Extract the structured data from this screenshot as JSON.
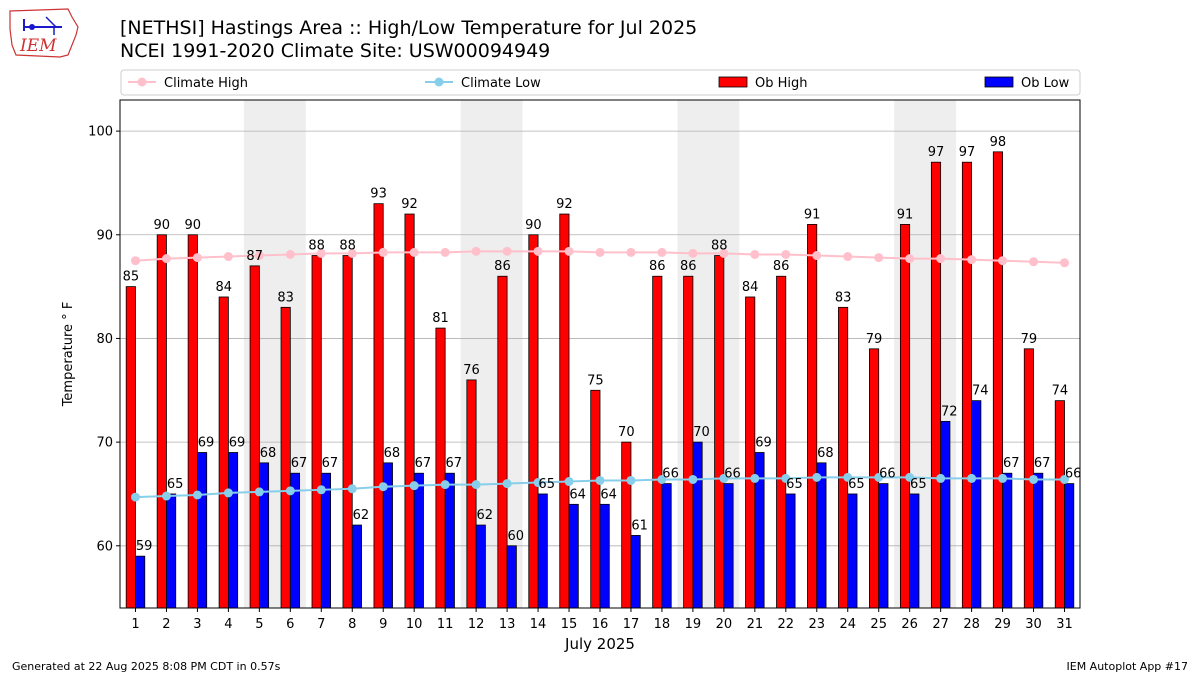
{
  "title": "[NETHSI] Hastings Area :: High/Low Temperature for Jul 2025",
  "subtitle": "NCEI 1991-2020 Climate Site: USW00094949",
  "footer_left": "Generated at 22 Aug 2025 8:08 PM CDT in 0.57s",
  "footer_right": "IEM Autoplot App #17",
  "logo_text": "IEM",
  "chart_data": {
    "type": "bar",
    "xlabel": "July 2025",
    "ylabel": "Temperature ° F",
    "ylim": [
      54,
      103
    ],
    "yticks": [
      60,
      70,
      80,
      90,
      100
    ],
    "grid": true,
    "legend_placement": "top",
    "weekend_shading": [
      [
        5,
        6
      ],
      [
        12,
        13
      ],
      [
        19,
        20
      ],
      [
        26,
        27
      ]
    ],
    "categories": [
      1,
      2,
      3,
      4,
      5,
      6,
      7,
      8,
      9,
      10,
      11,
      12,
      13,
      14,
      15,
      16,
      17,
      18,
      19,
      20,
      21,
      22,
      23,
      24,
      25,
      26,
      27,
      28,
      29,
      30,
      31
    ],
    "series": [
      {
        "name": "Ob High",
        "type": "bar",
        "color": "#ff0000",
        "values": [
          85,
          90,
          90,
          84,
          87,
          83,
          88,
          88,
          93,
          92,
          81,
          76,
          86,
          90,
          92,
          75,
          70,
          86,
          86,
          88,
          84,
          86,
          91,
          83,
          79,
          91,
          97,
          97,
          98,
          79,
          74
        ]
      },
      {
        "name": "Ob Low",
        "type": "bar",
        "color": "#0000ff",
        "values": [
          59,
          65,
          69,
          69,
          68,
          67,
          67,
          62,
          68,
          67,
          67,
          62,
          60,
          65,
          64,
          64,
          61,
          66,
          70,
          66,
          69,
          65,
          68,
          65,
          66,
          65,
          72,
          74,
          67,
          67,
          66
        ]
      },
      {
        "name": "Climate High",
        "type": "line",
        "color": "#ffc0cb",
        "values": [
          87.5,
          87.7,
          87.8,
          87.9,
          88.0,
          88.1,
          88.2,
          88.2,
          88.3,
          88.3,
          88.3,
          88.4,
          88.4,
          88.4,
          88.4,
          88.3,
          88.3,
          88.3,
          88.2,
          88.2,
          88.1,
          88.1,
          88.0,
          87.9,
          87.8,
          87.7,
          87.7,
          87.6,
          87.5,
          87.4,
          87.3
        ]
      },
      {
        "name": "Climate Low",
        "type": "line",
        "color": "#87ceeb",
        "values": [
          64.7,
          64.8,
          64.9,
          65.1,
          65.2,
          65.3,
          65.4,
          65.5,
          65.7,
          65.8,
          65.9,
          65.9,
          66.0,
          66.1,
          66.2,
          66.3,
          66.3,
          66.4,
          66.4,
          66.5,
          66.5,
          66.5,
          66.6,
          66.6,
          66.6,
          66.6,
          66.5,
          66.5,
          66.5,
          66.4,
          66.4
        ]
      }
    ],
    "legend_order": [
      "Climate High",
      "Climate Low",
      "Ob High",
      "Ob Low"
    ]
  }
}
